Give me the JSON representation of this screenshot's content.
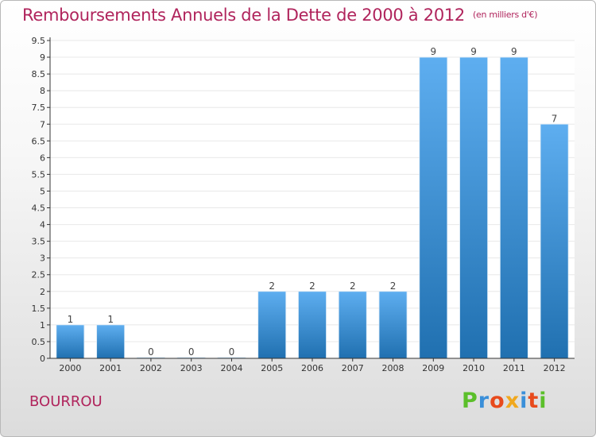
{
  "header": {
    "title": "Remboursements Annuels de la Dette de 2000 à 2012",
    "unit": "(en milliers d'€)"
  },
  "commune": "BOURROU",
  "logo": {
    "letters": [
      "P",
      "r",
      "o",
      "x",
      "i",
      "t",
      "i"
    ],
    "colors": [
      "#5bbf2a",
      "#3a8fd9",
      "#e84a1c",
      "#f0a81e",
      "#3a8fd9",
      "#e84a1c",
      "#5bbf2a"
    ]
  },
  "colors": {
    "bar_light": "#5eaef0",
    "bar_dark": "#2070b0",
    "axis": "#333333",
    "grid": "#e8e8e8"
  },
  "chart_data": {
    "type": "bar",
    "title": "Remboursements Annuels de la Dette de 2000 à 2012",
    "categories": [
      "2000",
      "2001",
      "2002",
      "2003",
      "2004",
      "2005",
      "2006",
      "2007",
      "2008",
      "2009",
      "2010",
      "2011",
      "2012"
    ],
    "values": [
      1,
      1,
      0,
      0,
      0,
      2,
      2,
      2,
      2,
      9,
      9,
      9,
      7
    ],
    "value_labels": [
      "1",
      "1",
      "0",
      "0",
      "0",
      "2",
      "2",
      "2",
      "2",
      "9",
      "9",
      "9",
      "7"
    ],
    "yticks": [
      "0",
      "0.5",
      "1",
      "1.5",
      "2",
      "2.5",
      "3",
      "3.5",
      "4",
      "4.5",
      "5",
      "5.5",
      "6",
      "6.5",
      "7",
      "7.5",
      "8",
      "8.5",
      "9",
      "9.5"
    ],
    "ylim": [
      0,
      9.5
    ],
    "grid": true
  }
}
